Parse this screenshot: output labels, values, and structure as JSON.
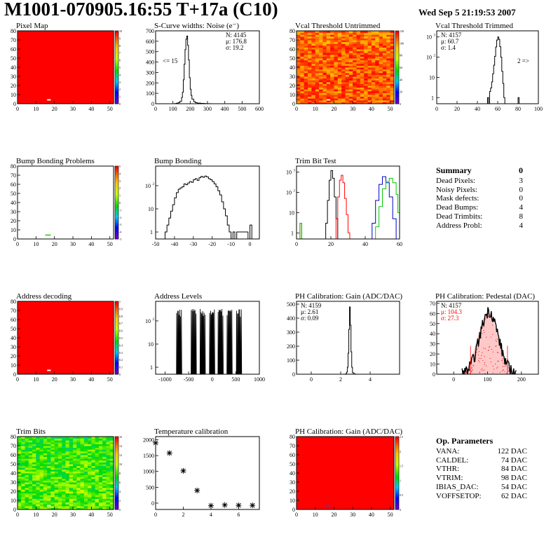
{
  "header": {
    "title": "M1001-070905.16:55 T+17a (C10)",
    "date": "Wed Sep  5 21:19:53 2007"
  },
  "summary": {
    "title": "Summary",
    "value": "0",
    "items": [
      {
        "label": "Dead Pixels:",
        "value": "3"
      },
      {
        "label": "Noisy Pixels:",
        "value": "0"
      },
      {
        "label": "Mask defects:",
        "value": "0"
      },
      {
        "label": "Dead Bumps:",
        "value": "4"
      },
      {
        "label": "Dead Trimbits:",
        "value": "8"
      },
      {
        "label": "Address Probl:",
        "value": "4"
      }
    ]
  },
  "op_params": {
    "title": "Op. Parameters",
    "items": [
      {
        "label": "VANA:",
        "value": "122 DAC"
      },
      {
        "label": "CALDEL:",
        "value": "74 DAC"
      },
      {
        "label": "VTHR:",
        "value": "84 DAC"
      },
      {
        "label": "VTRIM:",
        "value": "98 DAC"
      },
      {
        "label": "IBIAS_DAC:",
        "value": "54 DAC"
      },
      {
        "label": "VOFFSETOP:",
        "value": "62 DAC"
      }
    ]
  },
  "colors": {
    "red": "#ff0000",
    "black": "#000000",
    "green": "#00cc00",
    "blue": "#0000cc"
  },
  "chart_data": [
    {
      "id": "pixel_map",
      "type": "heatmap",
      "title": "Pixel Map",
      "xlim": [
        0,
        52
      ],
      "ylim": [
        0,
        80
      ],
      "xticks": [
        0,
        10,
        20,
        30,
        40,
        50
      ],
      "yticks": [
        0,
        10,
        20,
        30,
        40,
        50,
        60,
        70,
        80
      ],
      "zlim": [
        0,
        10
      ],
      "zticks": [
        "0",
        "1",
        "2",
        "3",
        "4",
        "5",
        "6",
        "7",
        "8",
        "9",
        "10"
      ],
      "fill": "#ff0000",
      "spots": [
        {
          "x": 16,
          "y": 4,
          "color": "#ffffff"
        }
      ]
    },
    {
      "id": "scurve",
      "type": "line",
      "title": "S-Curve widths: Noise (e⁻)",
      "xlim": [
        0,
        600
      ],
      "ylim": [
        0,
        700
      ],
      "xticks": [
        0,
        100,
        200,
        300,
        400,
        500,
        600
      ],
      "yticks": [
        0,
        100,
        200,
        300,
        400,
        500,
        600,
        700
      ],
      "stats": [
        "N: 4145",
        "μ: 176.8",
        "σ: 19.2"
      ],
      "annotation": "<= 15",
      "x": [
        90,
        110,
        120,
        130,
        140,
        150,
        155,
        160,
        165,
        170,
        175,
        180,
        185,
        190,
        195,
        200,
        205,
        210,
        220,
        230,
        240,
        260,
        280,
        300,
        320
      ],
      "y": [
        0,
        2,
        5,
        10,
        22,
        60,
        110,
        230,
        380,
        520,
        620,
        650,
        560,
        420,
        250,
        140,
        80,
        45,
        20,
        10,
        6,
        3,
        2,
        1,
        0
      ]
    },
    {
      "id": "vcal_untrimmed",
      "type": "heatmap",
      "title": "Vcal Threshold Untrimmed",
      "xlim": [
        0,
        52
      ],
      "ylim": [
        0,
        80
      ],
      "xticks": [
        0,
        10,
        20,
        30,
        40,
        50
      ],
      "yticks": [
        0,
        10,
        20,
        30,
        40,
        50,
        60,
        70,
        80
      ],
      "zlim": [
        0,
        130
      ],
      "zticks": [
        "0",
        "20",
        "40",
        "60",
        "80",
        "100",
        "120"
      ],
      "fill": "noise-hot",
      "spots": [
        {
          "x": 16,
          "y": 4,
          "color": "#ffffff"
        }
      ]
    },
    {
      "id": "vcal_trimmed",
      "type": "line",
      "title": "Vcal Threshold Trimmed",
      "log": true,
      "xlim": [
        0,
        100
      ],
      "ylim": [
        0.5,
        2000
      ],
      "xticks": [
        0,
        20,
        40,
        60,
        80,
        100
      ],
      "yticks": [
        1,
        10,
        100,
        1000
      ],
      "stats": [
        "N: 4157",
        "μ: 60.7",
        "σ: 1.4"
      ],
      "annotation": "2 =>",
      "x": [
        49,
        50,
        51,
        52,
        53,
        54,
        55,
        56,
        57,
        58,
        59,
        60,
        61,
        62,
        63,
        64,
        65,
        66,
        67,
        80,
        81
      ],
      "y": [
        0.4,
        1,
        0.4,
        2,
        3,
        6,
        15,
        40,
        110,
        320,
        700,
        1000,
        750,
        330,
        100,
        20,
        5,
        1,
        0.4,
        1,
        0.4
      ]
    },
    {
      "id": "bump_problems",
      "type": "heatmap",
      "title": "Bump Bonding Problems",
      "xlim": [
        0,
        52
      ],
      "ylim": [
        0,
        80
      ],
      "xticks": [
        0,
        10,
        20,
        30,
        40,
        50
      ],
      "yticks": [
        0,
        10,
        20,
        30,
        40,
        50,
        60,
        70,
        80
      ],
      "zlim": [
        -5,
        5
      ],
      "zticks": [
        "-5",
        "-4",
        "-3",
        "-2",
        "-1",
        "0",
        "1",
        "2",
        "3",
        "4",
        "5"
      ],
      "fill": "#ffffff",
      "spots": [
        {
          "x": 15,
          "y": 4,
          "w": 3,
          "color": "#44dd22"
        }
      ]
    },
    {
      "id": "bump_bonding",
      "type": "line",
      "title": "Bump Bonding",
      "log": true,
      "xlim": [
        -50,
        5
      ],
      "ylim": [
        0.5,
        700
      ],
      "xticks": [
        -50,
        -40,
        -30,
        -20,
        -10,
        0
      ],
      "yticks": [
        1,
        10,
        100
      ],
      "x": [
        -45,
        -44,
        -43,
        -42,
        -41,
        -40,
        -39,
        -38,
        -37,
        -36,
        -35,
        -34,
        -33,
        -32,
        -31,
        -30,
        -29,
        -28,
        -27,
        -26,
        -25,
        -24,
        -23,
        -22,
        -21,
        -20,
        -19,
        -18,
        -17,
        -16,
        -15,
        -14,
        -13,
        -12,
        -11,
        -10,
        -9,
        -8,
        -7,
        -1,
        0,
        1
      ],
      "y": [
        1,
        2,
        4,
        8,
        15,
        30,
        50,
        70,
        80,
        90,
        120,
        110,
        130,
        150,
        140,
        180,
        200,
        170,
        220,
        250,
        230,
        260,
        240,
        200,
        180,
        150,
        120,
        90,
        60,
        40,
        20,
        10,
        5,
        2,
        1,
        0.4,
        1,
        0.4,
        1,
        0.4,
        2,
        0.4
      ]
    },
    {
      "id": "trim_bit_test",
      "type": "line",
      "title": "Trim Bit Test",
      "log": true,
      "xlim": [
        0,
        60
      ],
      "ylim": [
        0.5,
        2000
      ],
      "xticks": [
        0,
        20,
        40,
        60
      ],
      "yticks": [
        1,
        10,
        100,
        1000
      ],
      "series": [
        {
          "color": "#000000",
          "x": [
            16,
            17,
            18,
            19,
            20,
            21,
            22,
            23,
            24
          ],
          "y": [
            0.4,
            3,
            40,
            400,
            1200,
            500,
            60,
            5,
            0.4
          ]
        },
        {
          "color": "#ff0000",
          "x": [
            1,
            2,
            3,
            22,
            23,
            24,
            25,
            26,
            27,
            28,
            29,
            30,
            31
          ],
          "y": [
            0.4,
            3,
            0.4,
            0.4,
            5,
            60,
            400,
            700,
            300,
            50,
            8,
            1,
            0.4
          ]
        },
        {
          "color": "#0000cc",
          "x": [
            42,
            44,
            46,
            48,
            50,
            52,
            54,
            56,
            58
          ],
          "y": [
            0.4,
            3,
            40,
            250,
            600,
            300,
            60,
            5,
            0.4
          ]
        },
        {
          "color": "#00cc00",
          "x": [
            1,
            2,
            3,
            44,
            46,
            48,
            50,
            52,
            54,
            56,
            58,
            59,
            60
          ],
          "y": [
            0.4,
            3,
            0.4,
            0.4,
            2,
            20,
            150,
            350,
            500,
            300,
            80,
            10,
            0.4
          ]
        }
      ]
    },
    {
      "id": "address_decoding",
      "type": "heatmap",
      "title": "Address decoding",
      "xlim": [
        0,
        52
      ],
      "ylim": [
        0,
        80
      ],
      "xticks": [
        0,
        10,
        20,
        30,
        40,
        50
      ],
      "yticks": [
        0,
        10,
        20,
        30,
        40,
        50,
        60,
        70,
        80
      ],
      "zlim": [
        0,
        1
      ],
      "zticks": [
        "0",
        "0.1",
        "0.2",
        "0.3",
        "0.4",
        "0.5",
        "0.6",
        "0.7",
        "0.8",
        "0.9",
        "1"
      ],
      "fill": "#ff0000",
      "spots": [
        {
          "x": 16,
          "y": 4,
          "color": "#ffffff"
        }
      ]
    },
    {
      "id": "address_levels",
      "type": "line",
      "title": "Address Levels",
      "log": true,
      "xlim": [
        -1200,
        1000
      ],
      "ylim": [
        0.5,
        700
      ],
      "xticks": [
        -1000,
        -500,
        0,
        500,
        1000
      ],
      "yticks": [
        1,
        10,
        100
      ],
      "peaks": [
        -700,
        -390,
        -200,
        0,
        180,
        370,
        570
      ],
      "peak_height": 300
    },
    {
      "id": "ph_gain",
      "type": "line",
      "title": "PH Calibration: Gain (ADC/DAC)",
      "xlim": [
        -1,
        6
      ],
      "ylim": [
        0,
        520
      ],
      "xticks": [
        0,
        2,
        4
      ],
      "yticks": [
        0,
        100,
        200,
        300,
        400,
        500
      ],
      "stats": [
        "N: 4159",
        "μ: 2.61",
        "σ: 0.09"
      ],
      "x": [
        2.2,
        2.3,
        2.4,
        2.45,
        2.5,
        2.55,
        2.6,
        2.65,
        2.7,
        2.75,
        2.8,
        2.9,
        3.0
      ],
      "y": [
        0,
        2,
        15,
        50,
        150,
        320,
        480,
        350,
        160,
        50,
        10,
        2,
        0
      ]
    },
    {
      "id": "ph_pedestal",
      "type": "line",
      "title": "PH Calibration: Pedestal (DAC)",
      "xlim": [
        -50,
        250
      ],
      "ylim": [
        0,
        72
      ],
      "xticks": [
        0,
        100,
        200
      ],
      "yticks": [
        0,
        10,
        20,
        30,
        40,
        50,
        60,
        70
      ],
      "stats": [
        "N: 4157",
        "μ: 104.3",
        "σ: 27.3"
      ],
      "stat_colors": [
        "#000000",
        "#ff0000",
        "#ff0000"
      ],
      "x": [
        20,
        30,
        40,
        50,
        60,
        70,
        80,
        90,
        100,
        110,
        120,
        130,
        140,
        150,
        160,
        170,
        180,
        190
      ],
      "y": [
        0,
        2,
        6,
        12,
        24,
        36,
        48,
        56,
        62,
        58,
        50,
        38,
        26,
        16,
        8,
        4,
        1,
        0
      ],
      "mu": 104.3,
      "sigma": 27.3
    },
    {
      "id": "trim_bits",
      "type": "heatmap",
      "title": "Trim Bits",
      "xlim": [
        0,
        52
      ],
      "ylim": [
        0,
        80
      ],
      "xticks": [
        0,
        10,
        20,
        30,
        40,
        50
      ],
      "yticks": [
        0,
        10,
        20,
        30,
        40,
        50,
        60,
        70,
        80
      ],
      "zlim": [
        0,
        16
      ],
      "zticks": [
        "0",
        "2",
        "4",
        "6",
        "8",
        "10",
        "12",
        "14",
        "16"
      ],
      "fill": "noise-green",
      "spots": [
        {
          "x": 16,
          "y": 4,
          "color": "#ffffff"
        }
      ]
    },
    {
      "id": "temperature",
      "type": "scatter",
      "title": "Temperature calibration",
      "xlim": [
        0,
        7.5
      ],
      "ylim": [
        -200,
        2100
      ],
      "xticks": [
        0,
        2,
        4,
        6
      ],
      "yticks": [
        0,
        500,
        1000,
        1500,
        2000
      ],
      "x": [
        0,
        1,
        2,
        3,
        4,
        5,
        6,
        7
      ],
      "y": [
        1900,
        1580,
        1020,
        400,
        -80,
        -60,
        -70,
        -70
      ]
    },
    {
      "id": "ph_gain_map",
      "type": "heatmap",
      "title": "PH Calibration: Gain (ADC/DAC)",
      "xlim": [
        0,
        52
      ],
      "ylim": [
        0,
        80
      ],
      "xticks": [
        0,
        10,
        20,
        30,
        40,
        50
      ],
      "yticks": [
        0,
        10,
        20,
        30,
        40,
        50,
        60,
        70,
        80
      ],
      "zlim": [
        0,
        2.7
      ],
      "zticks": [
        "0",
        "0.5",
        "1",
        "1.5",
        "2",
        "2.5"
      ],
      "fill": "#ff0000",
      "spots": [
        {
          "x": 16,
          "y": 4,
          "color": "#2244ff"
        }
      ]
    }
  ]
}
